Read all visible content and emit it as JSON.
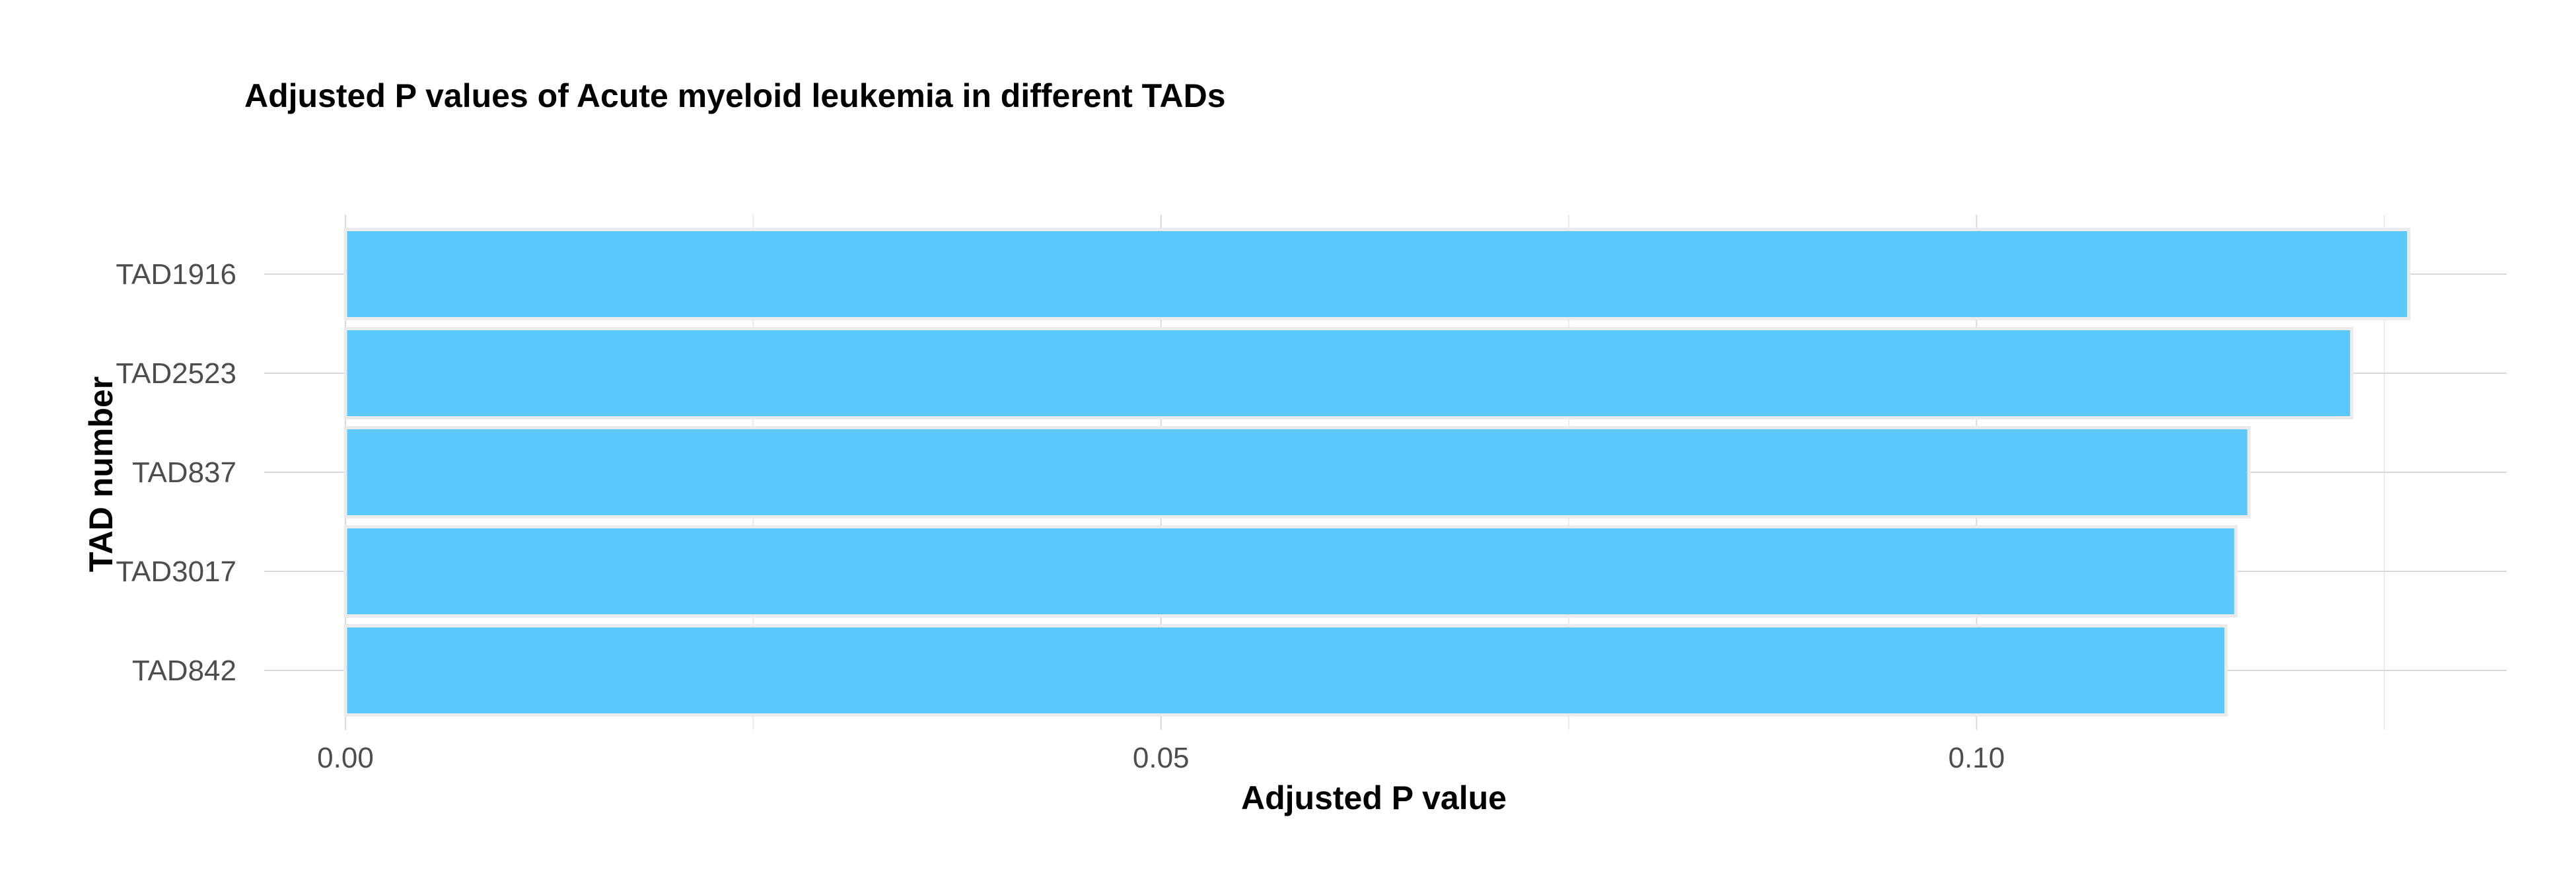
{
  "chart_data": {
    "type": "bar",
    "orientation": "horizontal",
    "title": "Adjusted P values of Acute myeloid leukemia in different TADs",
    "xlabel": "Adjusted P value",
    "ylabel": "TAD number",
    "categories": [
      "TAD1916",
      "TAD2523",
      "TAD837",
      "TAD3017",
      "TAD842"
    ],
    "values": [
      0.1265,
      0.123,
      0.1167,
      0.1159,
      0.1153
    ],
    "xlim": [
      0.0,
      0.1325
    ],
    "xticks": [
      "0.00",
      "0.05",
      "0.10"
    ],
    "xtick_values": [
      0.0,
      0.05,
      0.1
    ],
    "grid": true,
    "legend": "none",
    "colors": {
      "bar": "#5bc8fb",
      "grid": "#d9d9d9",
      "text": "#4d4d4d"
    }
  }
}
